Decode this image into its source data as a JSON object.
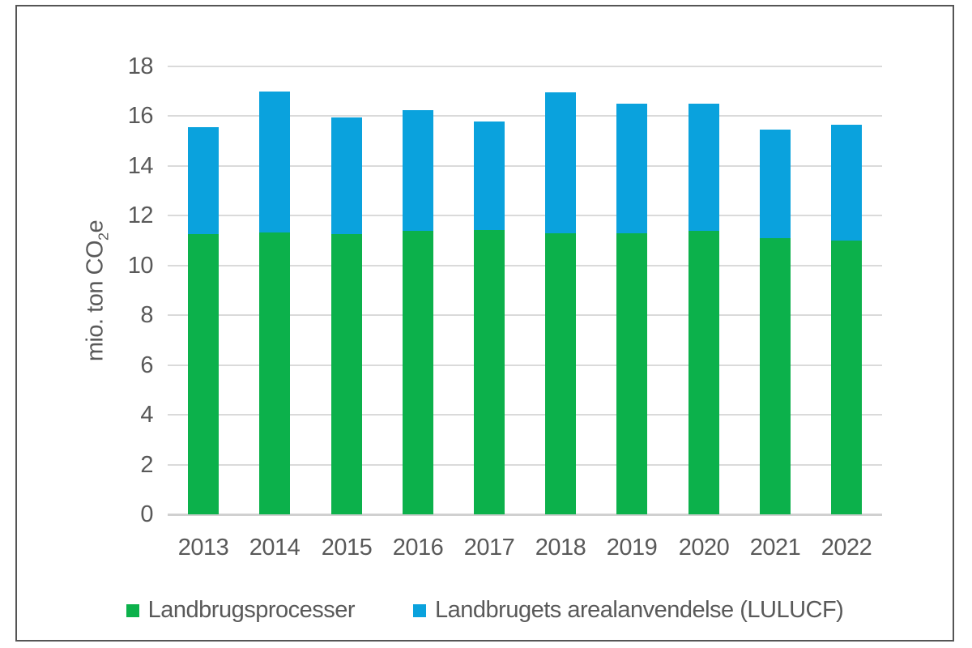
{
  "chart_data": {
    "type": "bar",
    "stacked": true,
    "categories": [
      "2013",
      "2014",
      "2015",
      "2016",
      "2017",
      "2018",
      "2019",
      "2020",
      "2021",
      "2022"
    ],
    "series": [
      {
        "name": "Landbrugsprocesser",
        "color": "#0cb14b",
        "values": [
          11.25,
          11.35,
          11.25,
          11.4,
          11.45,
          11.3,
          11.3,
          11.4,
          11.1,
          11.0
        ]
      },
      {
        "name": "Landbrugets arealanvendelse (LULUCF)",
        "color": "#0aa2dd",
        "values": [
          4.3,
          5.65,
          4.7,
          4.85,
          4.35,
          5.65,
          5.2,
          5.1,
          4.35,
          4.65
        ]
      }
    ],
    "totals": [
      15.55,
      17.0,
      15.95,
      16.25,
      15.8,
      16.95,
      16.5,
      16.5,
      15.45,
      15.65
    ],
    "ylabel_parts": {
      "prefix": "mio. ton CO",
      "subscript": "2",
      "suffix": "e"
    },
    "ylabel_text": "mio. ton CO2e",
    "ylim": [
      0,
      18
    ],
    "ytick_step": 2,
    "grid": true,
    "legend_position": "bottom",
    "colors": {
      "grid": "#dadada",
      "axis_line": "#d0d0d0",
      "text": "#595959",
      "frame_border": "#555555",
      "background": "#ffffff",
      "series_green": "#0cb14b",
      "series_blue": "#0aa2dd"
    }
  }
}
